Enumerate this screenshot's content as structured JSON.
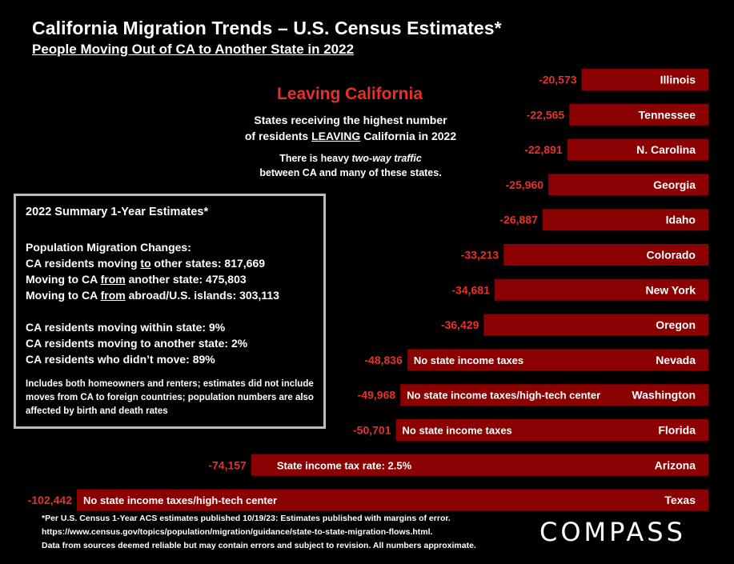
{
  "header": {
    "title": "California Migration Trends – U.S. Census Estimates*",
    "subtitle": "People Moving Out of CA to Another State in 2022"
  },
  "leaving": {
    "heading": "Leaving California",
    "line1": "States receiving the highest number",
    "line2_pre": "of residents ",
    "line2_u": "LEAVING",
    "line2_post": " California in 2022",
    "note1_pre": "There is heavy ",
    "note1_em": "two-way traffic",
    "note2": "between CA and many of these states."
  },
  "summary": {
    "heading": "2022 Summary 1-Year Estimates*",
    "pm_label": "Population Migration Changes:",
    "l1_a": "CA residents moving ",
    "l1_u": "to",
    "l1_b": " other states: 817,669",
    "l2_a": "Moving to CA ",
    "l2_u": "from",
    "l2_b": " another state: 475,803",
    "l3_a": "Moving to CA ",
    "l3_u": "from",
    "l3_b": " abroad/U.S. islands: 303,113",
    "l4": "CA residents moving within state:  9%",
    "l5": "CA residents moving to another state:  2%",
    "l6": "CA residents who didn’t move:  89%",
    "small": "Includes both homeowners and renters; estimates did not include moves from CA to foreign countries; population numbers are also affected by birth and death rates"
  },
  "chart_data": {
    "type": "bar",
    "orientation": "horizontal",
    "bar_color": "#8b0000",
    "value_label_color": "#e8302a",
    "categories": [
      "Illinois",
      "Tennessee",
      "N. Carolina",
      "Georgia",
      "Idaho",
      "Colorado",
      "New York",
      "Oregon",
      "Nevada",
      "Washington",
      "Florida",
      "Arizona",
      "Texas"
    ],
    "values": [
      -20573,
      -22565,
      -22891,
      -25960,
      -26887,
      -33213,
      -34681,
      -36429,
      -48836,
      -49968,
      -50701,
      -74157,
      -102442
    ],
    "value_labels": [
      "-20,573",
      "-22,565",
      "-22,891",
      "-25,960",
      "-26,887",
      "-33,213",
      "-34,681",
      "-36,429",
      "-48,836",
      "-49,968",
      "-50,701",
      "-74,157",
      "-102,442"
    ],
    "annotations": [
      "",
      "",
      "",
      "",
      "",
      "",
      "",
      "",
      "No state income taxes",
      "No state income taxes/high-tech center",
      "No state income taxes",
      "State income tax rate:  2.5%",
      "No state income taxes/high-tech center"
    ]
  },
  "footer": {
    "line1": "*Per U.S. Census 1-Year ACS estimates published 10/19/23: Estimates published with margins of error.",
    "line2": "https://www.census.gov/topics/population/migration/guidance/state-to-state-migration-flows.html.",
    "line3": "Data from sources deemed reliable but may contain errors and subject to revision. All numbers approximate."
  },
  "logo": "COMPASS"
}
